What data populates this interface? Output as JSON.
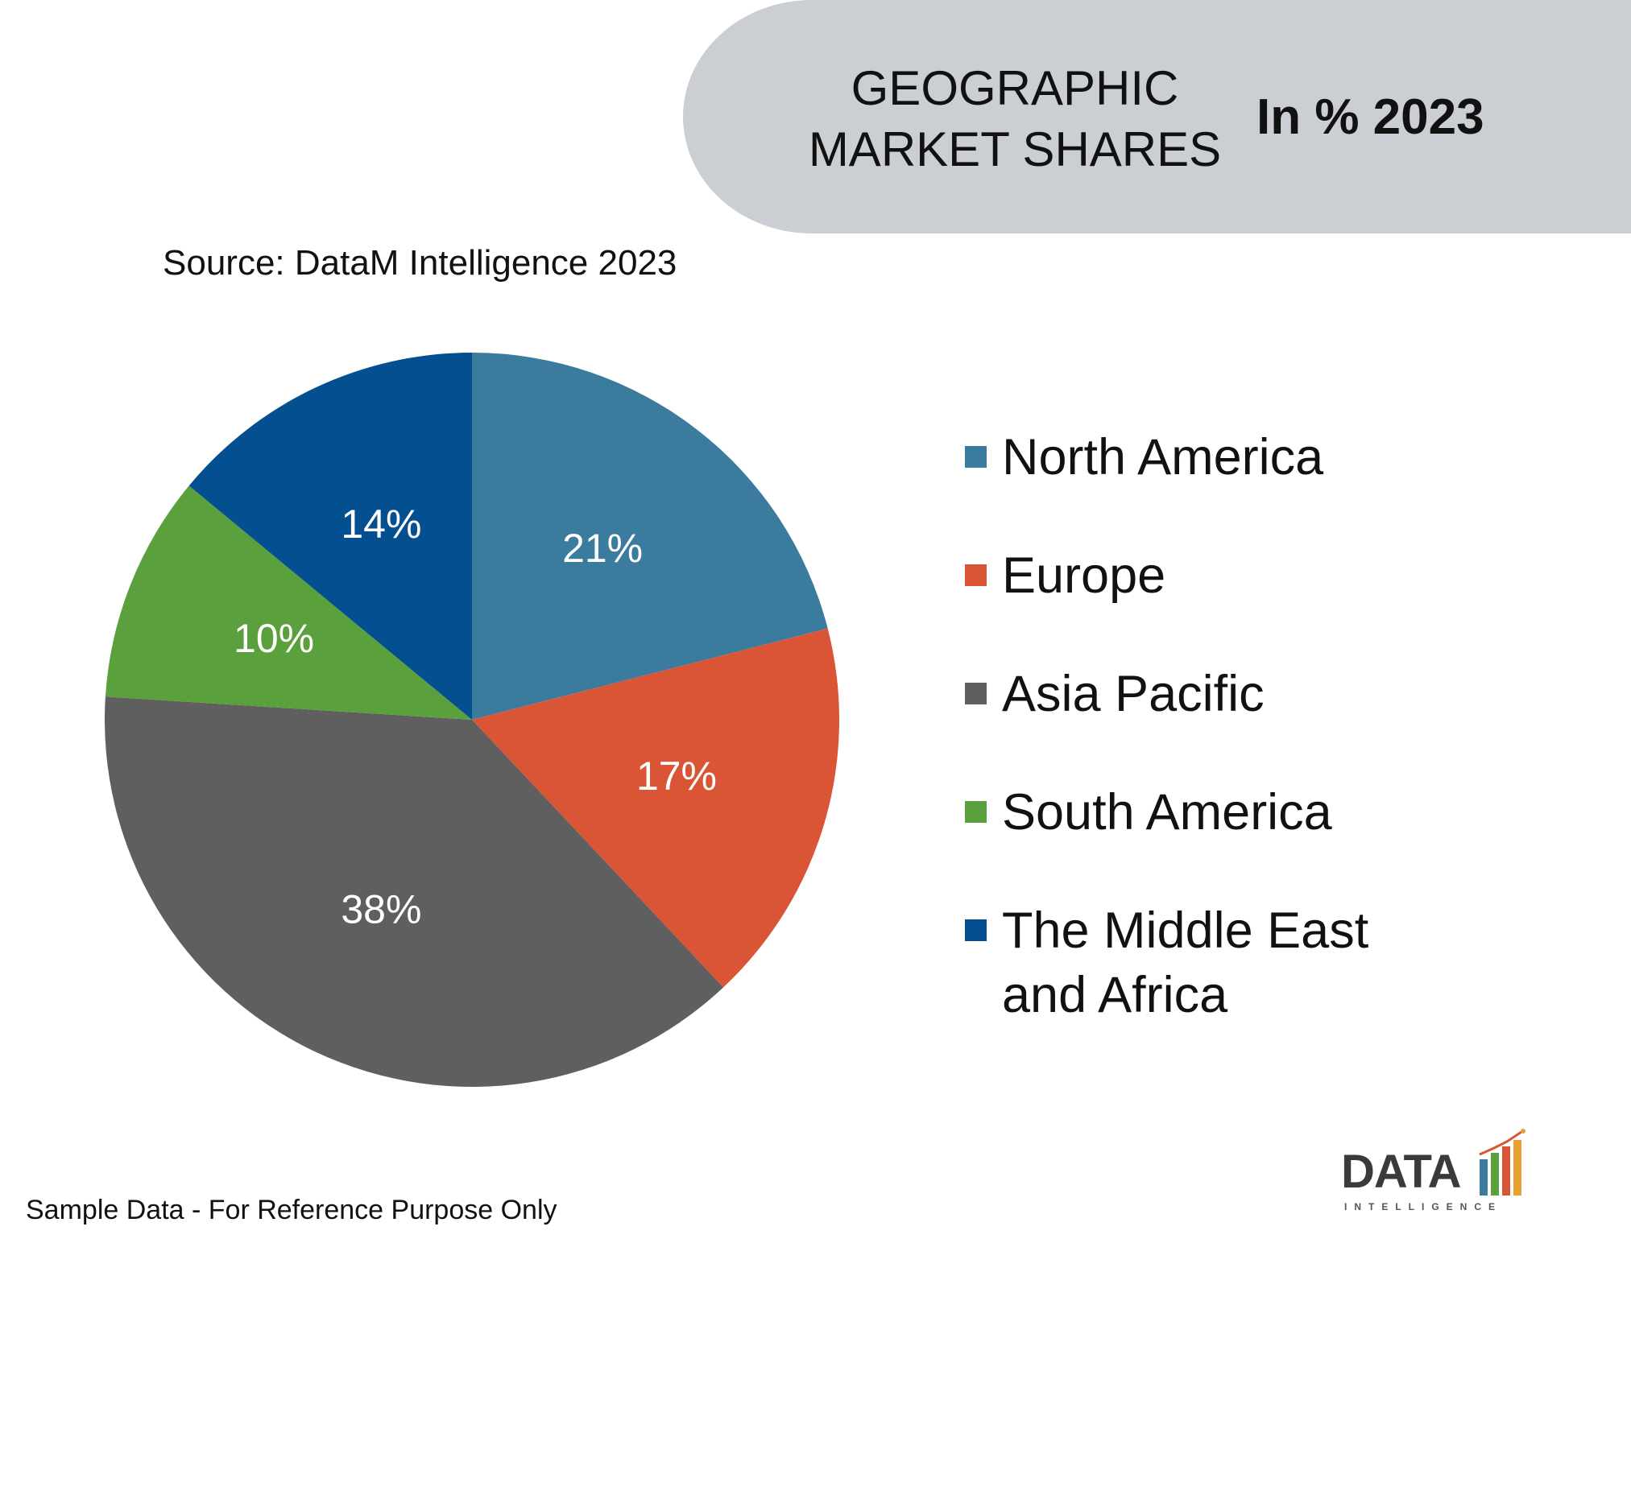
{
  "header": {
    "title_line1": "GEOGRAPHIC",
    "title_line2": "MARKET SHARES",
    "unit": "In % 2023"
  },
  "source": "Source: DataM Intelligence 2023",
  "footnote": "Sample Data - For Reference Purpose Only",
  "logo": {
    "word": "DATA",
    "sub": "INTELLIGENCE"
  },
  "colors": {
    "north_america": "#3a7b9e",
    "europe": "#d95535",
    "asia_pacific": "#5f5f5f",
    "south_america": "#5aa03c",
    "middle_east_africa": "#034f8f",
    "header_bg": "#cbcfd3"
  },
  "chart_data": {
    "type": "pie",
    "categories": [
      "North America",
      "Europe",
      "Asia Pacific",
      "South America",
      "The Middle East and Africa"
    ],
    "values": [
      21,
      17,
      38,
      10,
      14
    ],
    "labels": [
      "21%",
      "17%",
      "38%",
      "10%",
      "14%"
    ],
    "colors": [
      "#3a7b9e",
      "#d95535",
      "#5f5f5f",
      "#5aa03c",
      "#034f8f"
    ],
    "legend_position": "right",
    "legend": [
      {
        "label_lines": [
          "North America"
        ]
      },
      {
        "label_lines": [
          "Europe"
        ]
      },
      {
        "label_lines": [
          "Asia Pacific"
        ]
      },
      {
        "label_lines": [
          "South America"
        ]
      },
      {
        "label_lines": [
          "The Middle East",
          "and Africa"
        ]
      }
    ]
  }
}
